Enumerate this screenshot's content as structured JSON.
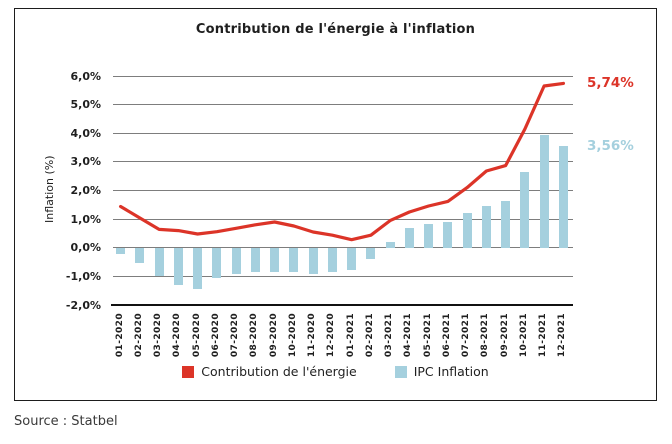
{
  "title": "Contribution de l'énergie à l'inflation",
  "source": "Source : Statbel",
  "y_axis": {
    "title": "Inflation (%)",
    "tick_labels": [
      "6,0%",
      "5,0%",
      "4,0%",
      "3,0%",
      "2,0%",
      "1,0%",
      "0,0%",
      "-1,0%",
      "-2,0%"
    ],
    "tick_values": [
      6,
      5,
      4,
      3,
      2,
      1,
      0,
      -1,
      -2
    ]
  },
  "annotations": {
    "line_end_label": "5,74%",
    "bar_end_label": "3,56%"
  },
  "legend": {
    "items": [
      {
        "label": "Contribution de l'énergie",
        "color": "#dc3428"
      },
      {
        "label": "IPC Inflation",
        "color": "#a5d0de"
      }
    ]
  },
  "colors": {
    "line": "#dc3428",
    "bar": "#a5d0de",
    "grid": "#7d7d7d",
    "axis": "#111111",
    "border": "#1d1d1d",
    "line_label": "#dc3428",
    "bar_label": "#a5d0de"
  },
  "chart_data": {
    "type": "combo",
    "categories": [
      "01-2020",
      "02-2020",
      "03-2020",
      "04-2020",
      "05-2020",
      "06-2020",
      "07-2020",
      "08-2020",
      "09-2020",
      "10-2020",
      "11-2020",
      "12-2020",
      "01-2021",
      "02-2021",
      "03-2021",
      "04-2021",
      "05-2021",
      "06-2021",
      "07-2021",
      "08-2021",
      "09-2021",
      "10-2021",
      "11-2021",
      "12-2021"
    ],
    "series": [
      {
        "name": "Contribution de l'énergie",
        "type": "line",
        "color": "#dc3428",
        "values": [
          1.44,
          1.04,
          0.64,
          0.6,
          0.48,
          0.56,
          0.68,
          0.8,
          0.9,
          0.76,
          0.55,
          0.44,
          0.28,
          0.44,
          0.95,
          1.25,
          1.46,
          1.62,
          2.1,
          2.68,
          2.87,
          4.15,
          5.65,
          5.74
        ]
      },
      {
        "name": "IPC Inflation",
        "type": "bar",
        "color": "#a5d0de",
        "values": [
          -0.23,
          -0.55,
          -1.0,
          -1.3,
          -1.45,
          -1.06,
          -0.9,
          -0.85,
          -0.86,
          -0.85,
          -0.92,
          -0.85,
          -0.79,
          -0.38,
          0.2,
          0.68,
          0.82,
          0.9,
          1.22,
          1.47,
          1.65,
          2.65,
          3.95,
          3.56
        ]
      }
    ],
    "ylim": [
      -2,
      6
    ],
    "yticks": [
      6,
      5,
      4,
      3,
      2,
      1,
      0,
      -1,
      -2
    ],
    "grid": true,
    "legend_position": "bottom",
    "title": "Contribution de l'énergie à l'inflation",
    "ylabel": "Inflation (%)",
    "end_labels": {
      "line": "5,74%",
      "bar": "3,56%"
    }
  }
}
